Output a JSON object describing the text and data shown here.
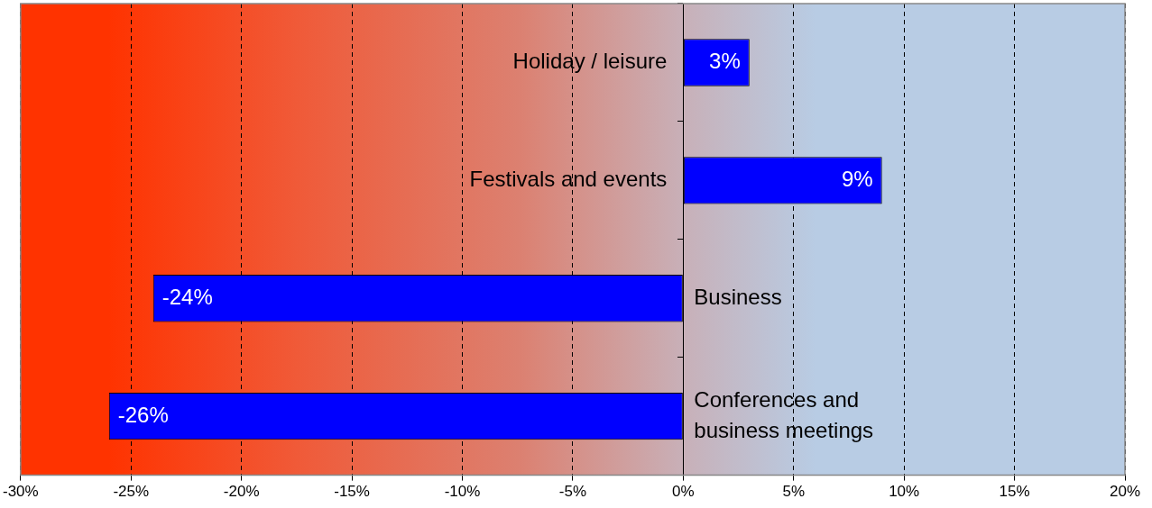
{
  "chart_data": {
    "type": "bar",
    "orientation": "horizontal",
    "categories": [
      "Holiday / leisure",
      "Festivals and events",
      "Business",
      "Conferences and business meetings"
    ],
    "values": [
      3,
      9,
      -24,
      -26
    ],
    "color": "#0000ff",
    "value_labels": [
      "3%",
      "9%",
      "-24%",
      "-26%"
    ],
    "xlim": [
      -30,
      20
    ],
    "xticks": [
      {
        "value": -30,
        "label": "-30%"
      },
      {
        "value": -25,
        "label": "-25%"
      },
      {
        "value": -20,
        "label": "-20%"
      },
      {
        "value": -15,
        "label": "-15%"
      },
      {
        "value": -10,
        "label": "-10%"
      },
      {
        "value": -5,
        "label": "-5%"
      },
      {
        "value": 0,
        "label": "0%"
      },
      {
        "value": 5,
        "label": "5%"
      },
      {
        "value": 10,
        "label": "10%"
      },
      {
        "value": 15,
        "label": "15%"
      },
      {
        "value": 20,
        "label": "20%"
      }
    ],
    "grid": "x",
    "legend": false
  }
}
